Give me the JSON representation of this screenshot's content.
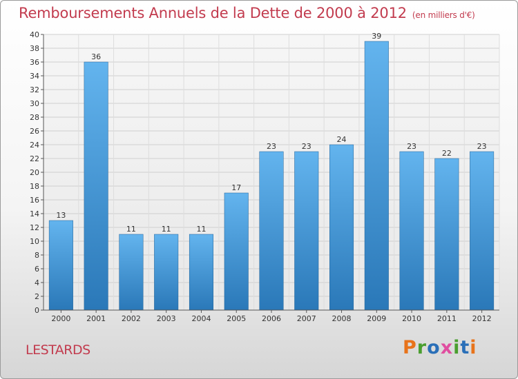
{
  "header": {
    "title": "Remboursements Annuels de la Dette de 2000 à 2012",
    "subtitle": "(en milliers d'€)"
  },
  "footer": {
    "place": "LESTARDS",
    "logo": "Proxiti"
  },
  "colors": {
    "title": "#c23b4e",
    "bar_top": "#63b4ee",
    "bar_bottom": "#2a78b8",
    "logo_letters": [
      "#e8731a",
      "#4a9e2f",
      "#2a6fb8",
      "#e04ea0",
      "#4a9e2f",
      "#2a6fb8",
      "#e8731a"
    ]
  },
  "chart_data": {
    "type": "bar",
    "categories": [
      "2000",
      "2001",
      "2002",
      "2003",
      "2004",
      "2005",
      "2006",
      "2007",
      "2008",
      "2009",
      "2010",
      "2011",
      "2012"
    ],
    "values": [
      13,
      36,
      11,
      11,
      11,
      17,
      23,
      23,
      24,
      39,
      23,
      22,
      23
    ],
    "title": "Remboursements Annuels de la Dette de 2000 à 2012",
    "ylim": [
      0,
      40
    ],
    "ytick_step": 2,
    "grid": true,
    "legend": "none"
  }
}
